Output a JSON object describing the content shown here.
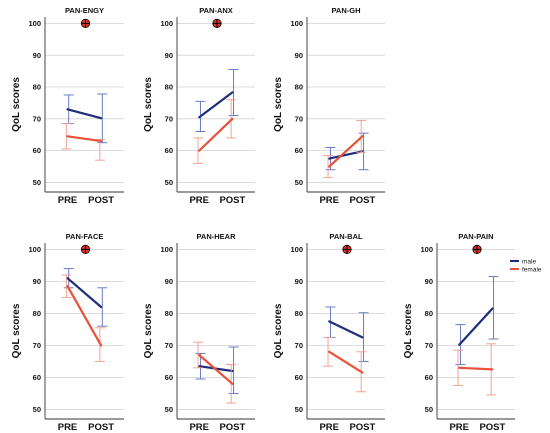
{
  "chart_data": {
    "type": "line",
    "x": [
      "PRE",
      "POST"
    ],
    "ylabel": "QoL scores",
    "ylim": [
      47,
      102
    ],
    "yticks": [
      50,
      60,
      70,
      80,
      90,
      100
    ],
    "grid": "horizontal",
    "legend": {
      "placement": "right of last panel",
      "entries": [
        "male",
        "female"
      ]
    },
    "colors": {
      "male": "#1f2e7a",
      "female": "#e8523a",
      "marker_fill": "#d7352d"
    },
    "marker": "circled-cross",
    "panels": [
      {
        "title": "PAN-ENGY",
        "marker": true,
        "marker_y": 100,
        "series": [
          {
            "name": "male",
            "mean": [
              73,
              70.2
            ],
            "ci_low": [
              68.5,
              62.5
            ],
            "ci_high": [
              77.5,
              77.8
            ]
          },
          {
            "name": "female",
            "mean": [
              64.5,
              63
            ],
            "ci_low": [
              60.5,
              57
            ],
            "ci_high": [
              68.5,
              63.5
            ]
          }
        ]
      },
      {
        "title": "PAN-ANX",
        "marker": true,
        "marker_y": 100,
        "series": [
          {
            "name": "male",
            "mean": [
              70.5,
              78.3
            ],
            "ci_low": [
              66,
              71
            ],
            "ci_high": [
              75.5,
              85.5
            ]
          },
          {
            "name": "female",
            "mean": [
              60,
              70
            ],
            "ci_low": [
              56,
              64
            ],
            "ci_high": [
              64,
              76
            ]
          }
        ]
      },
      {
        "title": "PAN-GH",
        "marker": false,
        "series": [
          {
            "name": "male",
            "mean": [
              57.5,
              59.8
            ],
            "ci_low": [
              54,
              54
            ],
            "ci_high": [
              61,
              65.5
            ]
          },
          {
            "name": "female",
            "mean": [
              55,
              64.5
            ],
            "ci_low": [
              51.5,
              59.5
            ],
            "ci_high": [
              58.5,
              69.5
            ]
          }
        ]
      },
      {
        "title": "PAN-FACE",
        "marker": true,
        "marker_y": 100,
        "series": [
          {
            "name": "male",
            "mean": [
              91,
              82
            ],
            "ci_low": [
              88,
              76
            ],
            "ci_high": [
              94,
              88
            ]
          },
          {
            "name": "female",
            "mean": [
              88.5,
              70
            ],
            "ci_low": [
              85,
              65
            ],
            "ci_high": [
              92,
              75.5
            ]
          }
        ]
      },
      {
        "title": "PAN-HEAR",
        "marker": false,
        "series": [
          {
            "name": "male",
            "mean": [
              63.5,
              62
            ],
            "ci_low": [
              59.5,
              55
            ],
            "ci_high": [
              67.5,
              69.5
            ]
          },
          {
            "name": "female",
            "mean": [
              67,
              58
            ],
            "ci_low": [
              63,
              52
            ],
            "ci_high": [
              71,
              64
            ]
          }
        ]
      },
      {
        "title": "PAN-BAL",
        "marker": true,
        "marker_y": 100,
        "series": [
          {
            "name": "male",
            "mean": [
              77.5,
              72.5
            ],
            "ci_low": [
              72.5,
              65
            ],
            "ci_high": [
              82,
              80.2
            ]
          },
          {
            "name": "female",
            "mean": [
              68,
              61.5
            ],
            "ci_low": [
              63.5,
              55.5
            ],
            "ci_high": [
              72.5,
              68
            ]
          }
        ]
      },
      {
        "title": "PAN-PAIN",
        "marker": true,
        "marker_y": 100,
        "series": [
          {
            "name": "male",
            "mean": [
              70.2,
              81.5
            ],
            "ci_low": [
              64,
              72
            ],
            "ci_high": [
              76.5,
              91.5
            ]
          },
          {
            "name": "female",
            "mean": [
              63,
              62.5
            ],
            "ci_low": [
              57.5,
              54.5
            ],
            "ci_high": [
              68.5,
              70.5
            ]
          }
        ]
      }
    ]
  }
}
